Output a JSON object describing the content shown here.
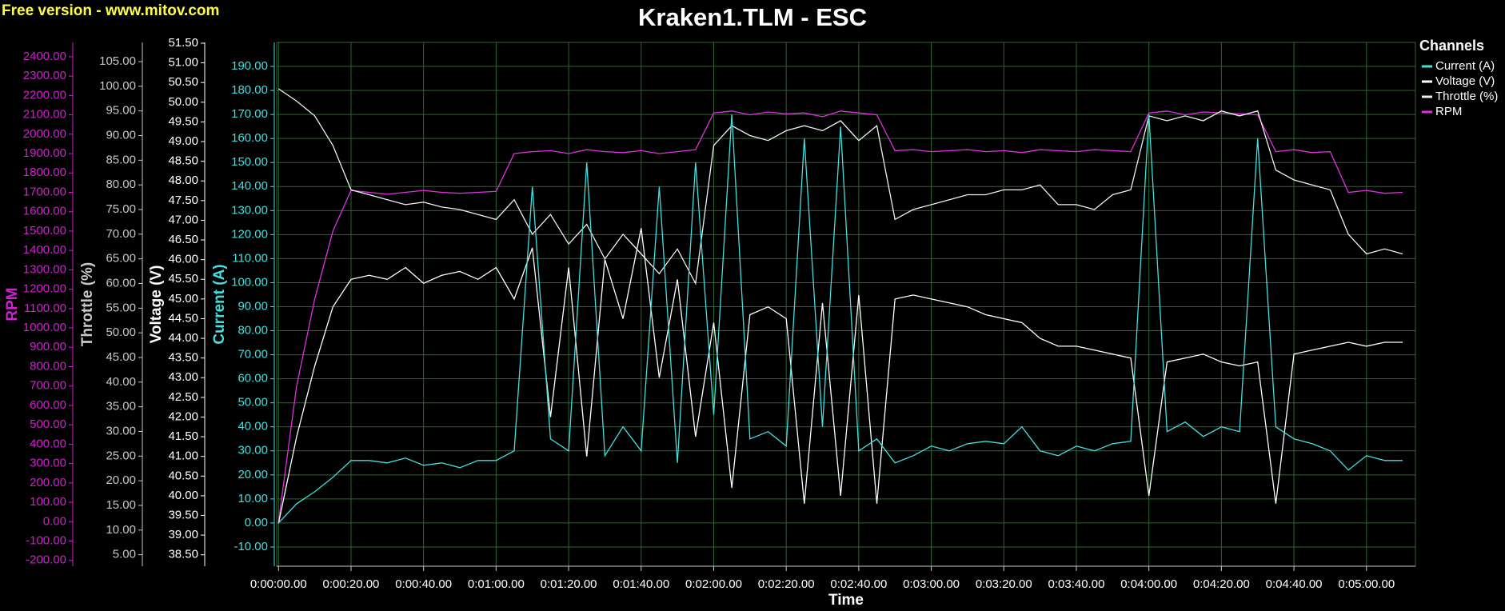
{
  "watermark": "Free version - www.mitov.com",
  "chart_data": {
    "type": "line",
    "title": "Kraken1.TLM - ESC",
    "xlabel": "Time",
    "legend_title": "Channels",
    "legend": "right",
    "grid": true,
    "xlim": [
      -0.5,
      313.5
    ],
    "xticks": [
      {
        "value": 0,
        "label": "0:00:00.00"
      },
      {
        "value": 20,
        "label": "0:00:20.00"
      },
      {
        "value": 40,
        "label": "0:00:40.00"
      },
      {
        "value": 60,
        "label": "0:01:00.00"
      },
      {
        "value": 80,
        "label": "0:01:20.00"
      },
      {
        "value": 100,
        "label": "0:01:40.00"
      },
      {
        "value": 120,
        "label": "0:02:00.00"
      },
      {
        "value": 140,
        "label": "0:02:20.00"
      },
      {
        "value": 160,
        "label": "0:02:40.00"
      },
      {
        "value": 180,
        "label": "0:03:00.00"
      },
      {
        "value": 200,
        "label": "0:03:20.00"
      },
      {
        "value": 220,
        "label": "0:03:40.00"
      },
      {
        "value": 240,
        "label": "0:04:00.00"
      },
      {
        "value": 260,
        "label": "0:04:20.00"
      },
      {
        "value": 280,
        "label": "0:04:40.00"
      },
      {
        "value": 300,
        "label": "0:05:00.00"
      }
    ],
    "x": [
      0,
      5,
      10,
      15,
      20,
      25,
      30,
      35,
      40,
      45,
      50,
      55,
      60,
      65,
      70,
      75,
      80,
      85,
      90,
      95,
      100,
      105,
      110,
      115,
      120,
      125,
      130,
      135,
      140,
      145,
      150,
      155,
      160,
      165,
      170,
      175,
      180,
      185,
      190,
      195,
      200,
      205,
      210,
      215,
      220,
      225,
      230,
      235,
      240,
      245,
      250,
      255,
      260,
      265,
      270,
      275,
      280,
      285,
      290,
      295,
      300,
      305,
      310
    ],
    "series": [
      {
        "name": "Current (A)",
        "color": "#40e0e0",
        "axis_color": "#40e0e0",
        "ylim": [
          -18,
          200
        ],
        "yticks": [
          {
            "value": -10,
            "label": "-10.00"
          },
          {
            "value": 0,
            "label": "0.00"
          },
          {
            "value": 10,
            "label": "10.00"
          },
          {
            "value": 20,
            "label": "20.00"
          },
          {
            "value": 30,
            "label": "30.00"
          },
          {
            "value": 40,
            "label": "40.00"
          },
          {
            "value": 50,
            "label": "50.00"
          },
          {
            "value": 60,
            "label": "60.00"
          },
          {
            "value": 70,
            "label": "70.00"
          },
          {
            "value": 80,
            "label": "80.00"
          },
          {
            "value": 90,
            "label": "90.00"
          },
          {
            "value": 100,
            "label": "100.00"
          },
          {
            "value": 110,
            "label": "110.00"
          },
          {
            "value": 120,
            "label": "120.00"
          },
          {
            "value": 130,
            "label": "130.00"
          },
          {
            "value": 140,
            "label": "140.00"
          },
          {
            "value": 150,
            "label": "150.00"
          },
          {
            "value": 160,
            "label": "160.00"
          },
          {
            "value": 170,
            "label": "170.00"
          },
          {
            "value": 180,
            "label": "180.00"
          },
          {
            "value": 190,
            "label": "190.00"
          }
        ],
        "values": [
          0,
          8,
          13,
          19,
          26,
          26,
          25,
          27,
          24,
          25,
          23,
          26,
          26,
          30,
          140,
          35,
          30,
          150,
          28,
          40,
          30,
          140,
          25,
          150,
          45,
          170,
          35,
          38,
          32,
          160,
          40,
          165,
          30,
          35,
          25,
          28,
          32,
          30,
          33,
          34,
          33,
          40,
          30,
          28,
          32,
          30,
          33,
          34,
          170,
          38,
          42,
          36,
          40,
          38,
          160,
          40,
          35,
          33,
          30,
          22,
          28,
          26,
          26
        ]
      },
      {
        "name": "Voltage (V)",
        "color": "#ffffff",
        "axis_color": "#ffffff",
        "ylim": [
          38.21,
          51.52
        ],
        "yticks": [
          {
            "value": 38.5,
            "label": "38.50"
          },
          {
            "value": 39,
            "label": "39.00"
          },
          {
            "value": 39.5,
            "label": "39.50"
          },
          {
            "value": 40,
            "label": "40.00"
          },
          {
            "value": 40.5,
            "label": "40.50"
          },
          {
            "value": 41,
            "label": "41.00"
          },
          {
            "value": 41.5,
            "label": "41.50"
          },
          {
            "value": 42,
            "label": "42.00"
          },
          {
            "value": 42.5,
            "label": "42.50"
          },
          {
            "value": 43,
            "label": "43.00"
          },
          {
            "value": 43.5,
            "label": "43.50"
          },
          {
            "value": 44,
            "label": "44.00"
          },
          {
            "value": 44.5,
            "label": "44.50"
          },
          {
            "value": 45,
            "label": "45.00"
          },
          {
            "value": 45.5,
            "label": "45.50"
          },
          {
            "value": 46,
            "label": "46.00"
          },
          {
            "value": 46.5,
            "label": "46.50"
          },
          {
            "value": 47,
            "label": "47.00"
          },
          {
            "value": 47.5,
            "label": "47.50"
          },
          {
            "value": 48,
            "label": "48.00"
          },
          {
            "value": 48.5,
            "label": "48.50"
          },
          {
            "value": 49,
            "label": "49.00"
          },
          {
            "value": 49.5,
            "label": "49.50"
          },
          {
            "value": 50,
            "label": "50.00"
          },
          {
            "value": 50.5,
            "label": "50.50"
          },
          {
            "value": 51,
            "label": "51.00"
          },
          {
            "value": 51.5,
            "label": "51.50"
          }
        ],
        "values": [
          39.3,
          41.5,
          43.3,
          44.8,
          45.5,
          45.6,
          45.5,
          45.8,
          45.4,
          45.6,
          45.7,
          45.5,
          45.8,
          45.0,
          46.3,
          42.0,
          45.8,
          41.0,
          46.0,
          44.5,
          46.8,
          43.0,
          45.5,
          41.5,
          44.4,
          40.2,
          44.6,
          44.8,
          44.5,
          39.8,
          44.9,
          40.0,
          45.1,
          39.8,
          45.0,
          45.1,
          45.0,
          44.9,
          44.8,
          44.6,
          44.5,
          44.4,
          44.0,
          43.8,
          43.8,
          43.7,
          43.6,
          43.5,
          40.0,
          43.4,
          43.5,
          43.6,
          43.4,
          43.3,
          43.4,
          39.8,
          43.6,
          43.7,
          43.8,
          43.9,
          43.8,
          43.9,
          43.9
        ]
      },
      {
        "name": "Throttle (%)",
        "color": "#f0f0f0",
        "axis_color": "#c8c8c8",
        "ylim": [
          2.67,
          108.9
        ],
        "yticks": [
          {
            "value": 5,
            "label": "5.00"
          },
          {
            "value": 10,
            "label": "10.00"
          },
          {
            "value": 15,
            "label": "15.00"
          },
          {
            "value": 20,
            "label": "20.00"
          },
          {
            "value": 25,
            "label": "25.00"
          },
          {
            "value": 30,
            "label": "30.00"
          },
          {
            "value": 35,
            "label": "35.00"
          },
          {
            "value": 40,
            "label": "40.00"
          },
          {
            "value": 45,
            "label": "45.00"
          },
          {
            "value": 50,
            "label": "50.00"
          },
          {
            "value": 55,
            "label": "55.00"
          },
          {
            "value": 60,
            "label": "60.00"
          },
          {
            "value": 65,
            "label": "65.00"
          },
          {
            "value": 70,
            "label": "70.00"
          },
          {
            "value": 75,
            "label": "75.00"
          },
          {
            "value": 80,
            "label": "80.00"
          },
          {
            "value": 85,
            "label": "85.00"
          },
          {
            "value": 90,
            "label": "90.00"
          },
          {
            "value": 95,
            "label": "95.00"
          },
          {
            "value": 100,
            "label": "100.00"
          },
          {
            "value": 105,
            "label": "105.00"
          }
        ],
        "values": [
          99.5,
          97,
          94,
          88,
          79,
          78,
          77,
          76,
          76.5,
          75.5,
          75,
          74,
          73,
          77,
          70,
          74,
          68,
          72,
          65,
          70,
          66,
          62,
          67,
          60,
          88,
          92,
          90,
          89,
          91,
          92,
          91,
          93,
          89,
          92,
          73,
          75,
          76,
          77,
          78,
          78,
          79,
          79,
          80,
          76,
          76,
          75,
          78,
          79,
          94,
          93,
          94,
          93,
          95,
          94,
          95,
          83,
          81,
          80,
          79,
          70,
          66,
          67,
          66
        ]
      },
      {
        "name": "RPM",
        "color": "#e030e0",
        "axis_color": "#d020d0",
        "ylim": [
          -230,
          2474
        ],
        "yticks": [
          {
            "value": -200,
            "label": "-200.00"
          },
          {
            "value": -100,
            "label": "-100.00"
          },
          {
            "value": 0,
            "label": "0.00"
          },
          {
            "value": 100,
            "label": "100.00"
          },
          {
            "value": 200,
            "label": "200.00"
          },
          {
            "value": 300,
            "label": "300.00"
          },
          {
            "value": 400,
            "label": "400.00"
          },
          {
            "value": 500,
            "label": "500.00"
          },
          {
            "value": 600,
            "label": "600.00"
          },
          {
            "value": 700,
            "label": "700.00"
          },
          {
            "value": 800,
            "label": "800.00"
          },
          {
            "value": 900,
            "label": "900.00"
          },
          {
            "value": 1000,
            "label": "1000.00"
          },
          {
            "value": 1100,
            "label": "1100.00"
          },
          {
            "value": 1200,
            "label": "1200.00"
          },
          {
            "value": 1300,
            "label": "1300.00"
          },
          {
            "value": 1400,
            "label": "1400.00"
          },
          {
            "value": 1500,
            "label": "1500.00"
          },
          {
            "value": 1600,
            "label": "1600.00"
          },
          {
            "value": 1700,
            "label": "1700.00"
          },
          {
            "value": 1800,
            "label": "1800.00"
          },
          {
            "value": 1900,
            "label": "1900.00"
          },
          {
            "value": 2000,
            "label": "2000.00"
          },
          {
            "value": 2100,
            "label": "2100.00"
          },
          {
            "value": 2200,
            "label": "2200.00"
          },
          {
            "value": 2300,
            "label": "2300.00"
          },
          {
            "value": 2400,
            "label": "2400.00"
          }
        ],
        "values": [
          0,
          700,
          1150,
          1500,
          1710,
          1700,
          1690,
          1700,
          1710,
          1700,
          1695,
          1700,
          1705,
          1900,
          1910,
          1915,
          1900,
          1920,
          1910,
          1905,
          1915,
          1900,
          1910,
          1920,
          2110,
          2120,
          2100,
          2115,
          2105,
          2110,
          2090,
          2120,
          2110,
          2100,
          1915,
          1920,
          1910,
          1915,
          1920,
          1910,
          1915,
          1905,
          1920,
          1915,
          1910,
          1920,
          1915,
          1910,
          2110,
          2120,
          2100,
          2115,
          2110,
          2105,
          2100,
          1910,
          1920,
          1905,
          1910,
          1700,
          1710,
          1695,
          1700
        ]
      }
    ]
  }
}
